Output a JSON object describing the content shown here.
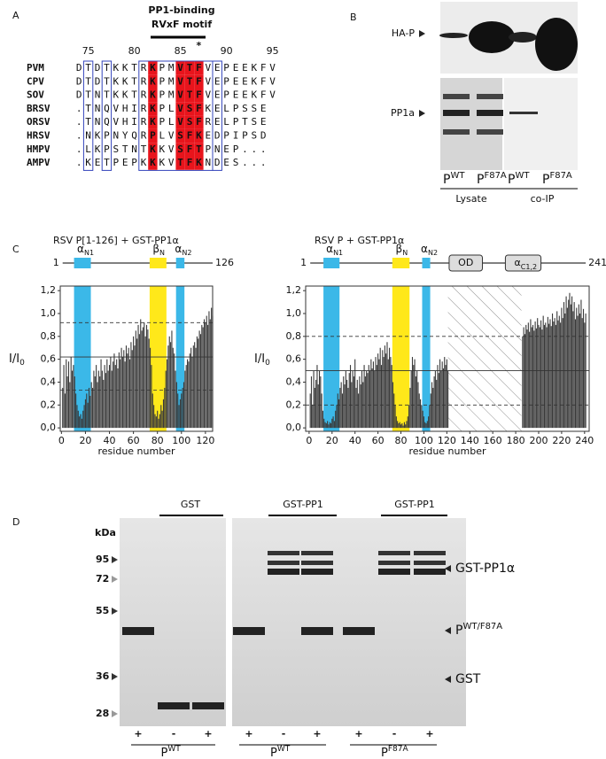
{
  "panel_labels": [
    "A",
    "B",
    "C",
    "D"
  ],
  "alignment": {
    "title": [
      "PP1-binding",
      "RVxF motif"
    ],
    "positions": [
      75,
      80,
      85,
      90,
      95
    ],
    "rows": [
      {
        "name": "PVM",
        "seq": "DTDTKKTRKPMVTFVEPEEKFV"
      },
      {
        "name": "CPV",
        "seq": "DTDTKKTRKPMVTFVEPEEKFV"
      },
      {
        "name": "SOV",
        "seq": "DTNTKKTRKPMVTFVEPEEKFV"
      },
      {
        "name": "BRSV",
        "seq": ".TNQVHIRKPLVSFKELPSSE"
      },
      {
        "name": "ORSV",
        "seq": ".TNQVHIRKPLVSFRELPTSE"
      },
      {
        "name": "HRSV",
        "seq": ".NKPNYQRPLVSFKEDPIPSD"
      },
      {
        "name": "HMPV",
        "seq": ".LKPSTNTKKVSFTPNEP..."
      },
      {
        "name": "AMPV",
        "seq": ".KETPEPKKKVTFKNDES..."
      }
    ],
    "filled_columns": [
      8,
      11,
      12,
      13
    ],
    "red_columns": [
      1,
      3,
      7,
      9,
      10,
      14
    ],
    "boxes": [
      [
        1,
        1
      ],
      [
        3,
        3
      ],
      [
        7,
        14
      ],
      [
        15,
        15
      ]
    ],
    "marked_column": 13,
    "asterisk": "*"
  },
  "blot": {
    "top_label": "HA-P",
    "bottom_label": "PP1a",
    "lanes": [
      {
        "name": "P",
        "sup": "WT"
      },
      {
        "name": "P",
        "sup": "F87A"
      },
      {
        "name": "P",
        "sup": "WT"
      },
      {
        "name": "P",
        "sup": "F87A"
      }
    ],
    "groups": [
      "Lysate",
      "co-IP"
    ]
  },
  "chart_data": [
    {
      "type": "bar",
      "title": "RSV P[1-126] + GST-PP1α",
      "xlabel": "residue number",
      "ylabel": "I/I",
      "ylabel_sub": "0",
      "diagram_ends": [
        1,
        126
      ],
      "regions": [
        {
          "name": "α",
          "sub": "N1",
          "start": 11,
          "end": 24,
          "color": "#3bb8e8"
        },
        {
          "name": "β",
          "sub": "N",
          "start": 74,
          "end": 87,
          "color": "#ffe81a"
        },
        {
          "name": "α",
          "sub": "N2",
          "start": 96,
          "end": 102,
          "color": "#3bb8e8"
        }
      ],
      "ref_lines": [
        {
          "value": 0.92,
          "style": "dashed"
        },
        {
          "value": 0.62,
          "style": "solid"
        },
        {
          "value": 0.33,
          "style": "dashed"
        }
      ],
      "xlim": [
        -1,
        126
      ],
      "ylim": [
        -0.03,
        1.24
      ],
      "xticks": [
        0,
        20,
        40,
        60,
        80,
        100,
        120
      ],
      "yticks": [
        {
          "value": 0,
          "label": "0,0"
        },
        {
          "value": 0.2,
          "label": "0,2"
        },
        {
          "value": 0.4,
          "label": "0,4"
        },
        {
          "value": 0.6,
          "label": "0,6"
        },
        {
          "value": 0.8,
          "label": "0,8"
        },
        {
          "value": 1.0,
          "label": "1,0"
        },
        {
          "value": 1.2,
          "label": "1,2"
        }
      ],
      "color": "#3a3a3a",
      "x": [
        1,
        2,
        3,
        4,
        5,
        6,
        7,
        8,
        9,
        10,
        11,
        12,
        13,
        14,
        15,
        16,
        17,
        18,
        19,
        20,
        21,
        22,
        23,
        24,
        25,
        26,
        27,
        28,
        29,
        30,
        31,
        32,
        33,
        34,
        35,
        36,
        37,
        38,
        39,
        40,
        41,
        42,
        43,
        44,
        45,
        46,
        47,
        48,
        49,
        50,
        51,
        52,
        53,
        54,
        55,
        56,
        57,
        58,
        59,
        60,
        61,
        62,
        63,
        64,
        65,
        66,
        67,
        68,
        69,
        70,
        71,
        72,
        73,
        74,
        75,
        76,
        77,
        78,
        79,
        80,
        81,
        82,
        83,
        84,
        85,
        86,
        87,
        88,
        89,
        90,
        91,
        92,
        93,
        94,
        95,
        96,
        97,
        98,
        99,
        100,
        101,
        102,
        103,
        104,
        105,
        106,
        107,
        108,
        109,
        110,
        111,
        112,
        113,
        114,
        115,
        116,
        117,
        118,
        119,
        120,
        121,
        122,
        123,
        124,
        125,
        126
      ],
      "values": [
        0.35,
        0.55,
        0.3,
        0.6,
        0.45,
        0.58,
        0.4,
        0.62,
        0.5,
        0.55,
        0.45,
        0.3,
        0.2,
        0.15,
        0.1,
        0.12,
        0.08,
        0.15,
        0.2,
        0.25,
        0.3,
        0.22,
        0.35,
        0.28,
        0.4,
        0.35,
        0.5,
        0.45,
        0.55,
        0.4,
        0.5,
        0.45,
        0.6,
        0.5,
        0.42,
        0.55,
        0.48,
        0.6,
        0.5,
        0.55,
        0.62,
        0.5,
        0.58,
        0.65,
        0.55,
        0.6,
        0.52,
        0.66,
        0.6,
        0.7,
        0.62,
        0.68,
        0.58,
        0.72,
        0.65,
        0.7,
        0.6,
        0.75,
        0.68,
        0.8,
        0.72,
        0.85,
        0.78,
        0.9,
        0.82,
        0.95,
        0.85,
        0.88,
        0.92,
        0.8,
        0.9,
        0.86,
        0.78,
        0.7,
        0.55,
        0.3,
        0.2,
        0.12,
        0.1,
        0.15,
        0.08,
        0.12,
        0.2,
        0.15,
        0.25,
        0.35,
        0.5,
        0.6,
        0.72,
        0.8,
        0.75,
        0.85,
        0.7,
        0.65,
        0.5,
        0.4,
        0.3,
        0.2,
        0.25,
        0.3,
        0.35,
        0.4,
        0.5,
        0.55,
        0.6,
        0.58,
        0.65,
        0.7,
        0.62,
        0.72,
        0.75,
        0.7,
        0.8,
        0.78,
        0.85,
        0.82,
        0.9,
        0.88,
        0.95,
        0.92,
        0.98,
        0.9,
        1.02,
        0.95,
        1.05,
        0.98
      ]
    },
    {
      "type": "bar",
      "title": "RSV P + GST-PP1α",
      "xlabel": "residue number",
      "ylabel": "I/I",
      "ylabel_sub": "0",
      "diagram_ends": [
        1,
        241
      ],
      "regions": [
        {
          "name": "α",
          "sub": "N1",
          "start": 13,
          "end": 26,
          "color": "#3bb8e8"
        },
        {
          "name": "β",
          "sub": "N",
          "start": 73,
          "end": 87,
          "color": "#ffe81a"
        },
        {
          "name": "α",
          "sub": "N2",
          "start": 99,
          "end": 105,
          "color": "#3bb8e8"
        }
      ],
      "domains": [
        {
          "name": "OD",
          "start": 122,
          "end": 151
        },
        {
          "name": "α",
          "sub": "C1,2",
          "start": 171,
          "end": 202
        }
      ],
      "hatch": [
        121,
        185
      ],
      "ref_lines": [
        {
          "value": 0.8,
          "style": "dashed"
        },
        {
          "value": 0.5,
          "style": "solid"
        },
        {
          "value": 0.2,
          "style": "dashed"
        }
      ],
      "xlim": [
        -3,
        244
      ],
      "ylim": [
        -0.03,
        1.24
      ],
      "xticks": [
        0,
        20,
        40,
        60,
        80,
        100,
        120,
        140,
        160,
        180,
        200,
        220,
        240
      ],
      "yticks": [
        {
          "value": 0,
          "label": "0,0"
        },
        {
          "value": 0.2,
          "label": "0,2"
        },
        {
          "value": 0.4,
          "label": "0,4"
        },
        {
          "value": 0.6,
          "label": "0,6"
        },
        {
          "value": 0.8,
          "label": "0,8"
        },
        {
          "value": 1.0,
          "label": "1,0"
        },
        {
          "value": 1.2,
          "label": "1,2"
        }
      ],
      "color": "#3a3a3a",
      "x": [
        1,
        2,
        3,
        4,
        5,
        6,
        7,
        8,
        9,
        10,
        11,
        12,
        13,
        14,
        15,
        16,
        17,
        18,
        19,
        20,
        21,
        22,
        23,
        24,
        25,
        26,
        27,
        28,
        29,
        30,
        31,
        32,
        33,
        34,
        35,
        36,
        37,
        38,
        39,
        40,
        41,
        42,
        43,
        44,
        45,
        46,
        47,
        48,
        49,
        50,
        51,
        52,
        53,
        54,
        55,
        56,
        57,
        58,
        59,
        60,
        61,
        62,
        63,
        64,
        65,
        66,
        67,
        68,
        69,
        70,
        71,
        72,
        73,
        74,
        75,
        76,
        77,
        78,
        79,
        80,
        81,
        82,
        83,
        84,
        85,
        86,
        87,
        88,
        89,
        90,
        91,
        92,
        93,
        94,
        95,
        96,
        97,
        98,
        99,
        100,
        101,
        102,
        103,
        104,
        105,
        106,
        107,
        108,
        109,
        110,
        111,
        112,
        113,
        114,
        115,
        116,
        117,
        118,
        119,
        120,
        121,
        186,
        187,
        188,
        189,
        190,
        191,
        192,
        193,
        194,
        195,
        196,
        197,
        198,
        199,
        200,
        201,
        202,
        203,
        204,
        205,
        206,
        207,
        208,
        209,
        210,
        211,
        212,
        213,
        214,
        215,
        216,
        217,
        218,
        219,
        220,
        221,
        222,
        223,
        224,
        225,
        226,
        227,
        228,
        229,
        230,
        231,
        232,
        233,
        234,
        235,
        236,
        237,
        238,
        239,
        240,
        241
      ],
      "values": [
        0.3,
        0.45,
        0.2,
        0.5,
        0.35,
        0.42,
        0.55,
        0.38,
        0.5,
        0.45,
        0.3,
        0.15,
        0.08,
        0.05,
        0.04,
        0.06,
        0.03,
        0.05,
        0.04,
        0.08,
        0.1,
        0.06,
        0.15,
        0.2,
        0.3,
        0.25,
        0.35,
        0.4,
        0.3,
        0.45,
        0.38,
        0.5,
        0.42,
        0.35,
        0.48,
        0.55,
        0.4,
        0.5,
        0.45,
        0.6,
        0.35,
        0.42,
        0.3,
        0.45,
        0.38,
        0.5,
        0.4,
        0.55,
        0.45,
        0.5,
        0.48,
        0.55,
        0.5,
        0.6,
        0.52,
        0.58,
        0.5,
        0.62,
        0.55,
        0.65,
        0.6,
        0.7,
        0.55,
        0.68,
        0.62,
        0.72,
        0.65,
        0.75,
        0.6,
        0.7,
        0.62,
        0.55,
        0.4,
        0.3,
        0.2,
        0.1,
        0.06,
        0.04,
        0.05,
        0.03,
        0.04,
        0.02,
        0.05,
        0.03,
        0.06,
        0.1,
        0.2,
        0.35,
        0.5,
        0.62,
        0.55,
        0.6,
        0.45,
        0.5,
        0.4,
        0.3,
        0.25,
        0.2,
        0.15,
        0.1,
        0.05,
        0.04,
        0.06,
        0.1,
        0.2,
        0.3,
        0.4,
        0.35,
        0.45,
        0.5,
        0.42,
        0.55,
        0.48,
        0.6,
        0.5,
        0.58,
        0.52,
        0.62,
        0.55,
        0.6,
        0.5,
        0.8,
        0.88,
        0.82,
        0.9,
        0.86,
        0.92,
        0.84,
        0.95,
        0.88,
        0.9,
        0.85,
        0.93,
        0.87,
        0.96,
        0.9,
        0.88,
        0.94,
        0.86,
        0.98,
        0.9,
        0.92,
        0.88,
        0.97,
        0.91,
        0.95,
        0.89,
        1.0,
        0.93,
        0.96,
        0.9,
        1.02,
        0.94,
        0.98,
        0.92,
        1.05,
        0.96,
        1.1,
        1.0,
        1.15,
        1.05,
        1.12,
        1.18,
        1.08,
        1.15,
        1.02,
        1.1,
        0.95,
        1.05,
        0.98,
        1.08,
        1.0,
        1.12,
        0.96,
        1.04,
        0.92,
        1.0
      ]
    }
  ],
  "gel": {
    "unit": "kDa",
    "markers": [
      95,
      72,
      55,
      36,
      28
    ],
    "groups": [
      "GST",
      "GST-PP1",
      "GST-PP1"
    ],
    "right_labels": [
      {
        "text": "GST-PP1α"
      },
      {
        "text": "P",
        "sup": "WT/F87A"
      },
      {
        "text": "GST"
      }
    ],
    "signs": [
      "+",
      "-",
      "+",
      "+",
      "-",
      "+",
      "+",
      "-",
      "+"
    ],
    "bottom": [
      {
        "text": "P",
        "sup": "WT"
      },
      {
        "text": "P",
        "sup": "WT"
      },
      {
        "text": "P",
        "sup": "F87A"
      }
    ]
  }
}
